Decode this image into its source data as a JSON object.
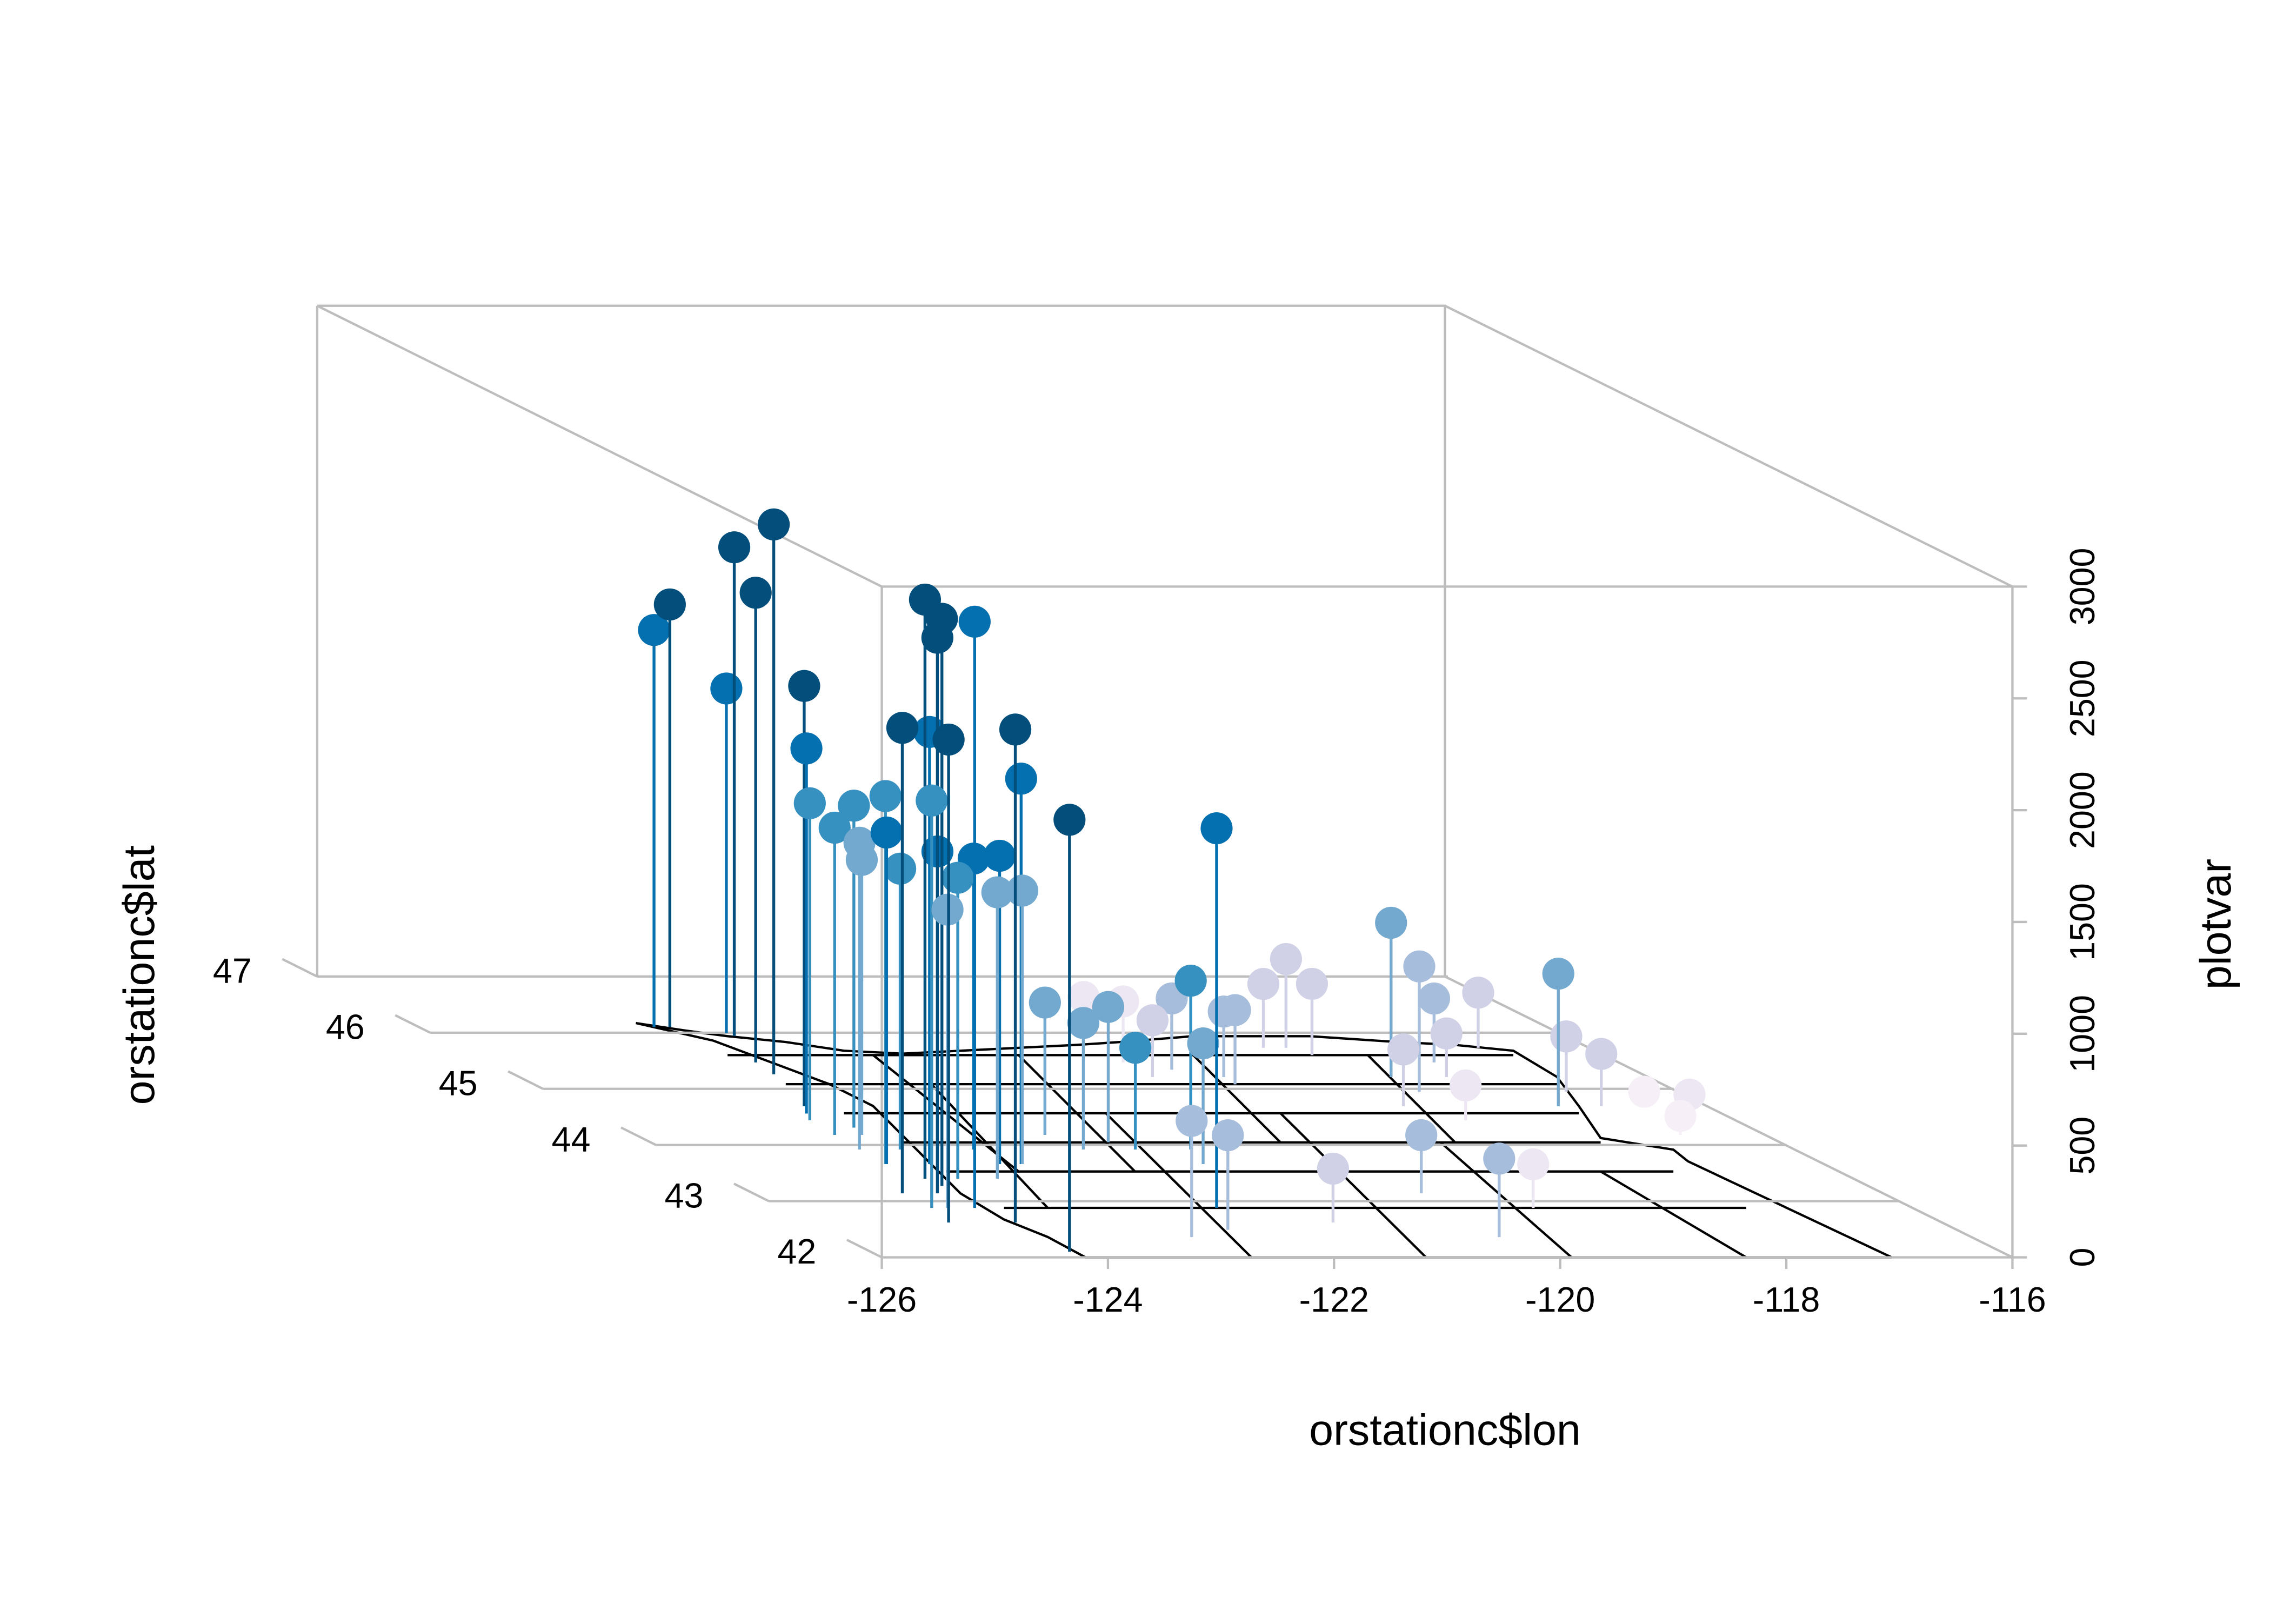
{
  "chart_data": {
    "type": "scatter3d",
    "x_label": "orstationc$lon",
    "y_label": "orstationc$lat",
    "z_label": "plotvar",
    "xlim": [
      -126,
      -116
    ],
    "ylim": [
      42,
      47
    ],
    "zlim": [
      0,
      3000
    ],
    "xticks": [
      -126,
      -124,
      -122,
      -120,
      -118,
      -116
    ],
    "yticks": [
      42,
      43,
      44,
      45,
      46,
      47
    ],
    "zticks": [
      0,
      500,
      1000,
      1500,
      2000,
      2500,
      3000
    ],
    "grid": true,
    "x": [
      -123.92,
      -123.78,
      -123.37,
      -123.65,
      -123.7,
      -123.39,
      -124.0,
      -124.11,
      -124.2,
      -124.24,
      -124.28,
      -123.94,
      -124.31,
      -124.68,
      -124.22,
      -124.2,
      -124.37,
      -123.92,
      -124.68,
      -124.79,
      -124.3,
      -124.2,
      -123.11,
      -124.24,
      -122.16,
      -124.3,
      -123.98,
      -123.27,
      -123.3,
      -123.93,
      -123.58,
      -123.1,
      -124.54,
      -123.92,
      -124.0,
      -118.29,
      -118.3,
      -117.33,
      -117.65,
      -117.0,
      -117.0,
      -116.95,
      -120.09,
      -120.18,
      -119.36,
      -121.39,
      -122.9,
      -122.45,
      -121.35,
      -121.5,
      -121.84,
      -121.95,
      -122.3,
      -122.38,
      -118.7,
      -118.6,
      -118.9,
      -119.77,
      -120.1,
      -119.8,
      -120.4,
      -118.7,
      -117.8,
      -116.57,
      -116.3,
      -116.76,
      -118.4,
      -120.75,
      -120.4
    ],
    "y": [
      46.1,
      46.1,
      45.94,
      45.47,
      45.26,
      45.99,
      44.69,
      44.56,
      44.44,
      44.18,
      43.92,
      44.31,
      43.66,
      43.14,
      43.4,
      43.27,
      43.14,
      43.66,
      42.88,
      42.62,
      42.88,
      42.62,
      43.66,
      42.1,
      42.88,
      43.66,
      43.53,
      43.92,
      43.66,
      43.4,
      43.4,
      43.66,
      42.88,
      43.92,
      44.18,
      45.21,
      44.95,
      44.69,
      45.47,
      45.73,
      44.95,
      44.69,
      43.14,
      42.36,
      42.88,
      42.62,
      42.36,
      42.49,
      43.92,
      43.66,
      43.92,
      44.05,
      43.92,
      44.18,
      45.73,
      45.6,
      45.73,
      45.21,
      45.34,
      45.08,
      45.21,
      44.69,
      45.21,
      44.69,
      44.56,
      44.18,
      44.44,
      45.47,
      45.47
    ],
    "z": [
      1776,
      1890,
      2186,
      2101,
      2459,
      1542,
      1880,
      1633,
      1418,
      1374,
      1372,
      1440,
      1646,
      2082,
      2590,
      2537,
      2485,
      1933,
      1822,
      2160,
      2622,
      2205,
      1724,
      1932,
      1698,
      1483,
      1431,
      1301,
      1379,
      1346,
      1281,
      1223,
      1334,
      1256,
      1230,
      690,
      560,
      593,
      286,
      247,
      247,
      234,
      260,
      351,
      195,
      241,
      520,
      423,
      755,
      540,
      455,
      605,
      566,
      592,
      397,
      319,
      286,
      293,
      319,
      332,
      254,
      254,
      195,
      65,
      85,
      85,
      156,
      293,
      273
    ],
    "point_colors": [
      "#0570b0",
      "#034e7b",
      "#034e7b",
      "#034e7b",
      "#034e7b",
      "#0570b0",
      "#034e7b",
      "#0570b0",
      "#3690c0",
      "#3690c0",
      "#74a9cf",
      "#3690c0",
      "#3690c0",
      "#034e7b",
      "#034e7b",
      "#034e7b",
      "#034e7b",
      "#0570b0",
      "#3690c0",
      "#034e7b",
      "#0570b0",
      "#034e7b",
      "#0570b0",
      "#034e7b",
      "#0570b0",
      "#0570b0",
      "#0570b0",
      "#0570b0",
      "#0570b0",
      "#3690c0",
      "#74a9cf",
      "#74a9cf",
      "#74a9cf",
      "#3690c0",
      "#74a9cf",
      "#74a9cf",
      "#a6bddb",
      "#74a9cf",
      "#a6bddb",
      "#d0d1e6",
      "#d0d1e6",
      "#d0d1e6",
      "#a6bddb",
      "#a6bddb",
      "#ece7f2",
      "#d0d1e6",
      "#a6bddb",
      "#a6bddb",
      "#3690c0",
      "#74a9cf",
      "#3690c0",
      "#74a9cf",
      "#74a9cf",
      "#74a9cf",
      "#d0d1e6",
      "#d0d1e6",
      "#d0d1e6",
      "#a6bddb",
      "#a6bddb",
      "#a6bddb",
      "#d0d1e6",
      "#d0d1e6",
      "#d0d1e6",
      "#f6eff7",
      "#ece7f2",
      "#f6eff7",
      "#ece7f2",
      "#ece7f2",
      "#ece7f2"
    ]
  }
}
